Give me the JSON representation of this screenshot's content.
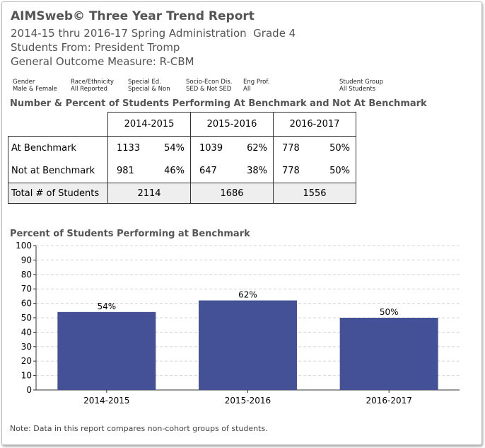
{
  "header": {
    "title": "AIMSweb© Three Year Trend Report",
    "admin_line": "2014-15 thru 2016-17 Spring Administration  Grade 4",
    "students_from": "Students From: President Tromp",
    "measure": "General Outcome Measure: R-CBM"
  },
  "filters": [
    {
      "label": "Gender",
      "value": "Male & Female"
    },
    {
      "label": "Race/Ethnicity",
      "value": "All Reported"
    },
    {
      "label": "Special Ed.",
      "value": "Special & Non"
    },
    {
      "label": "Socio-Econ Dis.",
      "value": "SED & Not SED"
    },
    {
      "label": "Eng Prof.",
      "value": "All"
    },
    {
      "label": "Student Group",
      "value": "All Students"
    }
  ],
  "table": {
    "title": "Number & Percent of Students Performing At Benchmark and Not At Benchmark",
    "years": [
      "2014-2015",
      "2015-2016",
      "2016-2017"
    ],
    "rows": [
      {
        "label": "At Benchmark",
        "cells": [
          [
            "1133",
            "54%"
          ],
          [
            "1039",
            "62%"
          ],
          [
            "778",
            "50%"
          ]
        ]
      },
      {
        "label": "Not at Benchmark",
        "cells": [
          [
            "981",
            "46%"
          ],
          [
            "647",
            "38%"
          ],
          [
            "778",
            "50%"
          ]
        ]
      }
    ],
    "total": {
      "label": "Total # of Students",
      "values": [
        "2114",
        "1686",
        "1556"
      ]
    }
  },
  "chart_title": "Percent of Students Performing at Benchmark",
  "chart_data": {
    "type": "bar",
    "categories": [
      "2014-2015",
      "2015-2016",
      "2016-2017"
    ],
    "values": [
      54,
      62,
      50
    ],
    "data_labels": [
      "54%",
      "62%",
      "50%"
    ],
    "ylim": [
      0,
      100
    ],
    "yticks": [
      0,
      10,
      20,
      30,
      40,
      50,
      60,
      70,
      80,
      90,
      100
    ],
    "grid": true,
    "bar_color": "#455196"
  },
  "note": "Note: Data in this report compares non-cohort groups of students."
}
